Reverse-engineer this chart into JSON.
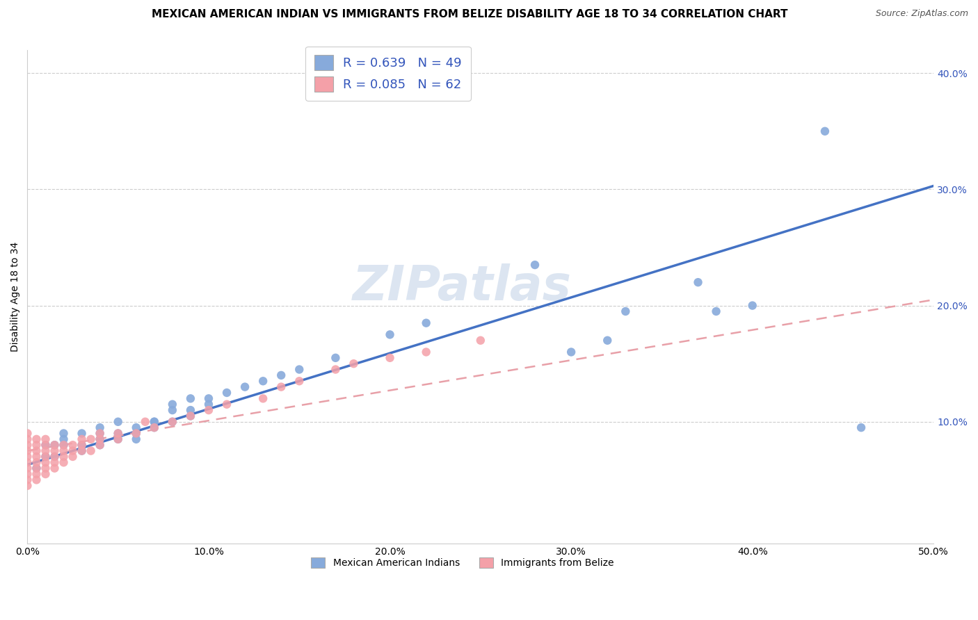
{
  "title": "MEXICAN AMERICAN INDIAN VS IMMIGRANTS FROM BELIZE DISABILITY AGE 18 TO 34 CORRELATION CHART",
  "source_text": "Source: ZipAtlas.com",
  "ylabel": "Disability Age 18 to 34",
  "xlabel": "",
  "xlim": [
    0.0,
    0.5
  ],
  "ylim": [
    -0.005,
    0.42
  ],
  "xtick_labels": [
    "0.0%",
    "10.0%",
    "20.0%",
    "30.0%",
    "40.0%",
    "50.0%"
  ],
  "xtick_values": [
    0.0,
    0.1,
    0.2,
    0.3,
    0.4,
    0.5
  ],
  "ytick_labels": [
    "10.0%",
    "20.0%",
    "30.0%",
    "40.0%"
  ],
  "ytick_values": [
    0.1,
    0.2,
    0.3,
    0.4
  ],
  "blue_color": "#87AADB",
  "pink_color": "#F4A0A8",
  "blue_line_color": "#4472C4",
  "pink_line_color": "#E8A0A8",
  "grid_color": "#CCCCCC",
  "watermark_text": "ZIPatlas",
  "watermark_color": "#C5D5E8",
  "R_blue": 0.639,
  "N_blue": 49,
  "R_pink": 0.085,
  "N_pink": 62,
  "blue_scatter_x": [
    0.005,
    0.01,
    0.01,
    0.015,
    0.015,
    0.02,
    0.02,
    0.02,
    0.03,
    0.03,
    0.03,
    0.04,
    0.04,
    0.04,
    0.04,
    0.05,
    0.05,
    0.05,
    0.06,
    0.06,
    0.06,
    0.07,
    0.07,
    0.07,
    0.08,
    0.08,
    0.08,
    0.09,
    0.09,
    0.09,
    0.1,
    0.1,
    0.11,
    0.12,
    0.13,
    0.14,
    0.15,
    0.17,
    0.2,
    0.22,
    0.28,
    0.3,
    0.32,
    0.33,
    0.37,
    0.38,
    0.4,
    0.44,
    0.46
  ],
  "blue_scatter_y": [
    0.06,
    0.07,
    0.08,
    0.08,
    0.07,
    0.08,
    0.09,
    0.085,
    0.09,
    0.075,
    0.08,
    0.09,
    0.08,
    0.095,
    0.085,
    0.1,
    0.085,
    0.09,
    0.095,
    0.085,
    0.09,
    0.1,
    0.095,
    0.1,
    0.11,
    0.1,
    0.115,
    0.11,
    0.12,
    0.105,
    0.12,
    0.115,
    0.125,
    0.13,
    0.135,
    0.14,
    0.145,
    0.155,
    0.175,
    0.185,
    0.235,
    0.16,
    0.17,
    0.195,
    0.22,
    0.195,
    0.2,
    0.35,
    0.095
  ],
  "pink_scatter_x": [
    0.0,
    0.0,
    0.0,
    0.0,
    0.0,
    0.0,
    0.0,
    0.0,
    0.0,
    0.0,
    0.005,
    0.005,
    0.005,
    0.005,
    0.005,
    0.005,
    0.005,
    0.005,
    0.01,
    0.01,
    0.01,
    0.01,
    0.01,
    0.01,
    0.01,
    0.015,
    0.015,
    0.015,
    0.015,
    0.015,
    0.02,
    0.02,
    0.02,
    0.02,
    0.025,
    0.025,
    0.025,
    0.03,
    0.03,
    0.03,
    0.035,
    0.035,
    0.04,
    0.04,
    0.04,
    0.05,
    0.05,
    0.06,
    0.065,
    0.07,
    0.08,
    0.09,
    0.1,
    0.11,
    0.13,
    0.14,
    0.15,
    0.17,
    0.18,
    0.2,
    0.22,
    0.25
  ],
  "pink_scatter_y": [
    0.045,
    0.05,
    0.055,
    0.06,
    0.065,
    0.07,
    0.075,
    0.08,
    0.085,
    0.09,
    0.05,
    0.055,
    0.06,
    0.065,
    0.07,
    0.075,
    0.08,
    0.085,
    0.055,
    0.06,
    0.065,
    0.07,
    0.075,
    0.08,
    0.085,
    0.06,
    0.065,
    0.07,
    0.075,
    0.08,
    0.065,
    0.07,
    0.075,
    0.08,
    0.07,
    0.075,
    0.08,
    0.075,
    0.08,
    0.085,
    0.075,
    0.085,
    0.08,
    0.085,
    0.09,
    0.085,
    0.09,
    0.09,
    0.1,
    0.095,
    0.1,
    0.105,
    0.11,
    0.115,
    0.12,
    0.13,
    0.135,
    0.145,
    0.15,
    0.155,
    0.16,
    0.17
  ],
  "blue_trend_x": [
    0.0,
    0.5
  ],
  "blue_trend_y": [
    0.063,
    0.303
  ],
  "pink_trend_x": [
    0.0,
    0.5
  ],
  "pink_trend_y": [
    0.075,
    0.205
  ],
  "title_fontsize": 11,
  "axis_label_fontsize": 10,
  "tick_fontsize": 10,
  "watermark_fontsize": 50,
  "background_color": "#FFFFFF",
  "plot_bg_color": "#FFFFFF",
  "legend_label_color": "#3355BB",
  "bottom_legend_color": "#333333"
}
